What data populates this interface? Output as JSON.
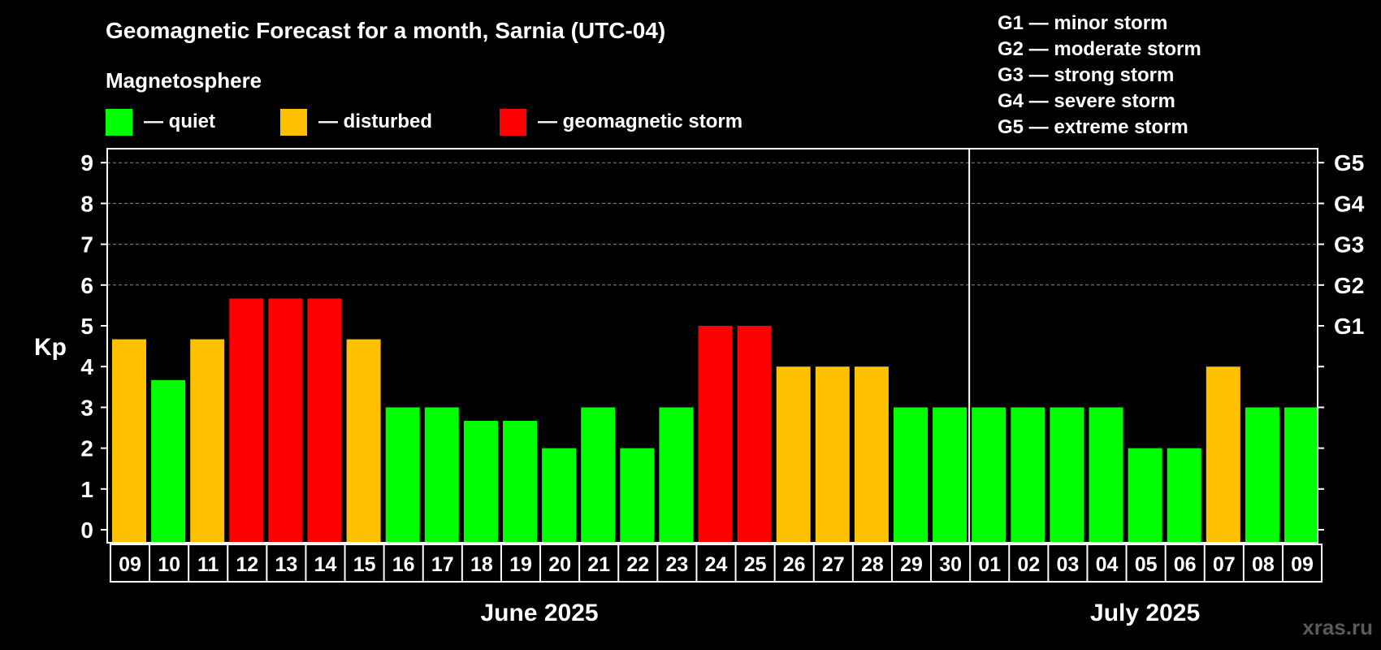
{
  "chart_data": {
    "type": "bar",
    "title": "Geomagnetic Forecast for a month, Sarnia (UTC-04)",
    "legend_title": "Magnetosphere",
    "legend": [
      {
        "label": "— quiet",
        "color": "#00ff00",
        "status": "quiet"
      },
      {
        "label": "— disturbed",
        "color": "#ffc000",
        "status": "disturbed"
      },
      {
        "label": "— geomagnetic storm",
        "color": "#ff0000",
        "status": "storm"
      }
    ],
    "storm_scale": [
      "G1 — minor storm",
      "G2 — moderate storm",
      "G3 — strong storm",
      "G4 — severe storm",
      "G5 — extreme storm"
    ],
    "ylabel": "Kp",
    "ylim": [
      0,
      9
    ],
    "yticks": [
      "0",
      "1",
      "2",
      "3",
      "4",
      "5",
      "6",
      "7",
      "8",
      "9"
    ],
    "right_labels": [
      {
        "value": 5,
        "label": "G1"
      },
      {
        "value": 6,
        "label": "G2"
      },
      {
        "value": 7,
        "label": "G3"
      },
      {
        "value": 8,
        "label": "G4"
      },
      {
        "value": 9,
        "label": "G5"
      }
    ],
    "gridlines": [
      6,
      7,
      8,
      9
    ],
    "categories": [
      "09",
      "10",
      "11",
      "12",
      "13",
      "14",
      "15",
      "16",
      "17",
      "18",
      "19",
      "20",
      "21",
      "22",
      "23",
      "24",
      "25",
      "26",
      "27",
      "28",
      "29",
      "30",
      "01",
      "02",
      "03",
      "04",
      "05",
      "06",
      "07",
      "08",
      "09"
    ],
    "values": [
      4.67,
      3.67,
      4.67,
      5.67,
      5.67,
      5.67,
      4.67,
      3,
      3,
      2.67,
      2.67,
      2,
      3,
      2,
      3,
      5,
      5,
      4,
      4,
      4,
      3,
      3,
      3,
      3,
      3,
      3,
      2,
      2,
      4,
      3,
      3
    ],
    "status": [
      "disturbed",
      "quiet",
      "disturbed",
      "storm",
      "storm",
      "storm",
      "disturbed",
      "quiet",
      "quiet",
      "quiet",
      "quiet",
      "quiet",
      "quiet",
      "quiet",
      "quiet",
      "storm",
      "storm",
      "disturbed",
      "disturbed",
      "disturbed",
      "quiet",
      "quiet",
      "quiet",
      "quiet",
      "quiet",
      "quiet",
      "quiet",
      "quiet",
      "disturbed",
      "quiet",
      "quiet"
    ],
    "months": [
      {
        "label": "June 2025",
        "start": 0,
        "end": 21
      },
      {
        "label": "July 2025",
        "start": 22,
        "end": 30
      }
    ]
  },
  "watermark": "xras.ru"
}
